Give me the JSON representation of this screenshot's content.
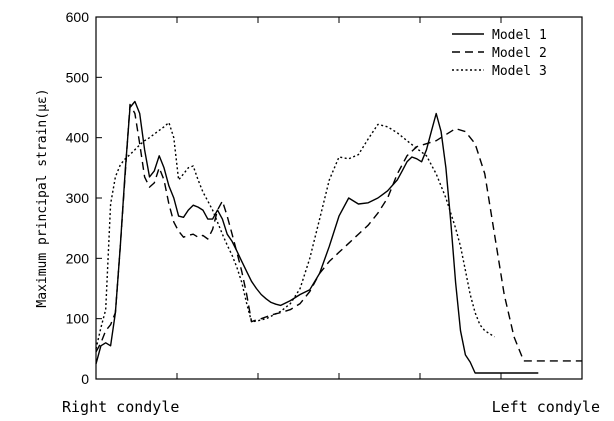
{
  "chart_data": {
    "type": "line",
    "ylabel": "Maximum principal strain(με)",
    "ylim": [
      0,
      600
    ],
    "yticks": [
      0,
      100,
      200,
      300,
      400,
      500,
      600
    ],
    "xlim": [
      0,
      100
    ],
    "x_end_labels": {
      "left": "Right condyle",
      "right": "Left condyle"
    },
    "grid": false,
    "legend_position": "top-right",
    "series": [
      {
        "name": "Model 1",
        "dash": "solid",
        "color": "#000000",
        "x": [
          0,
          1,
          2,
          3,
          4,
          5,
          6,
          7,
          8,
          9,
          10,
          11,
          12,
          13,
          14,
          15,
          16,
          17,
          18,
          19,
          20,
          21,
          22,
          23,
          24,
          25,
          26,
          27,
          28,
          29,
          30,
          31,
          32,
          33,
          34,
          35,
          36,
          37,
          38,
          40,
          42,
          44,
          46,
          48,
          50,
          52,
          54,
          56,
          58,
          60,
          62,
          63,
          64,
          65,
          66,
          67,
          68,
          69,
          70,
          71,
          72,
          73,
          74,
          75,
          76,
          77,
          78,
          79,
          80,
          81,
          82,
          83,
          84,
          85,
          86,
          87,
          88,
          89,
          90,
          91
        ],
        "values": [
          25,
          55,
          60,
          55,
          110,
          220,
          345,
          450,
          460,
          440,
          380,
          335,
          345,
          370,
          350,
          320,
          300,
          270,
          268,
          280,
          288,
          285,
          280,
          265,
          265,
          280,
          265,
          240,
          228,
          212,
          195,
          178,
          162,
          150,
          140,
          133,
          127,
          124,
          122,
          130,
          140,
          148,
          175,
          220,
          270,
          300,
          290,
          292,
          300,
          312,
          330,
          345,
          360,
          368,
          365,
          360,
          380,
          410,
          440,
          410,
          350,
          260,
          160,
          80,
          40,
          28,
          10,
          10,
          10,
          10,
          10,
          10,
          10,
          10,
          10,
          10,
          10,
          10,
          10,
          10
        ]
      },
      {
        "name": "Model 2",
        "dash": "dashed",
        "color": "#000000",
        "x": [
          0,
          1,
          2,
          3,
          4,
          5,
          6,
          7,
          8,
          9,
          10,
          11,
          12,
          13,
          14,
          15,
          16,
          17,
          18,
          19,
          20,
          21,
          22,
          23,
          24,
          25,
          26,
          27,
          28,
          29,
          30,
          31,
          32,
          33,
          34,
          35,
          36,
          37,
          38,
          40,
          42,
          44,
          46,
          48,
          50,
          52,
          54,
          56,
          58,
          60,
          62,
          64,
          66,
          68,
          70,
          72,
          74,
          76,
          78,
          80,
          82,
          84,
          86,
          88,
          90,
          92,
          94,
          96,
          98,
          100
        ],
        "values": [
          45,
          60,
          80,
          90,
          110,
          220,
          340,
          455,
          440,
          390,
          335,
          318,
          325,
          350,
          330,
          290,
          260,
          245,
          235,
          238,
          240,
          235,
          238,
          232,
          248,
          280,
          295,
          270,
          240,
          210,
          178,
          140,
          95,
          98,
          100,
          103,
          106,
          108,
          110,
          115,
          125,
          145,
          175,
          195,
          210,
          225,
          240,
          255,
          275,
          300,
          340,
          370,
          385,
          390,
          395,
          405,
          415,
          410,
          390,
          340,
          240,
          140,
          70,
          30,
          30,
          30,
          30,
          30,
          30,
          30
        ]
      },
      {
        "name": "Model 3",
        "dash": "dotted",
        "color": "#000000",
        "x": [
          0,
          1,
          2,
          3,
          4,
          5,
          6,
          7,
          8,
          9,
          10,
          11,
          12,
          13,
          14,
          15,
          16,
          17,
          18,
          19,
          20,
          21,
          22,
          23,
          24,
          25,
          26,
          27,
          28,
          29,
          30,
          31,
          32,
          33,
          34,
          35,
          36,
          37,
          38,
          40,
          42,
          44,
          46,
          48,
          50,
          52,
          54,
          56,
          58,
          60,
          62,
          64,
          66,
          68,
          70,
          72,
          74,
          75,
          76,
          77,
          78,
          79,
          80,
          81,
          82
        ],
        "values": [
          50,
          85,
          115,
          290,
          335,
          355,
          365,
          372,
          380,
          388,
          395,
          400,
          406,
          412,
          418,
          425,
          400,
          330,
          340,
          350,
          353,
          330,
          310,
          295,
          280,
          260,
          240,
          222,
          205,
          185,
          160,
          125,
          95,
          96,
          98,
          100,
          104,
          108,
          112,
          125,
          150,
          200,
          265,
          330,
          368,
          365,
          372,
          398,
          422,
          418,
          408,
          395,
          382,
          370,
          340,
          300,
          250,
          220,
          180,
          140,
          110,
          90,
          80,
          75,
          70
        ]
      }
    ]
  }
}
